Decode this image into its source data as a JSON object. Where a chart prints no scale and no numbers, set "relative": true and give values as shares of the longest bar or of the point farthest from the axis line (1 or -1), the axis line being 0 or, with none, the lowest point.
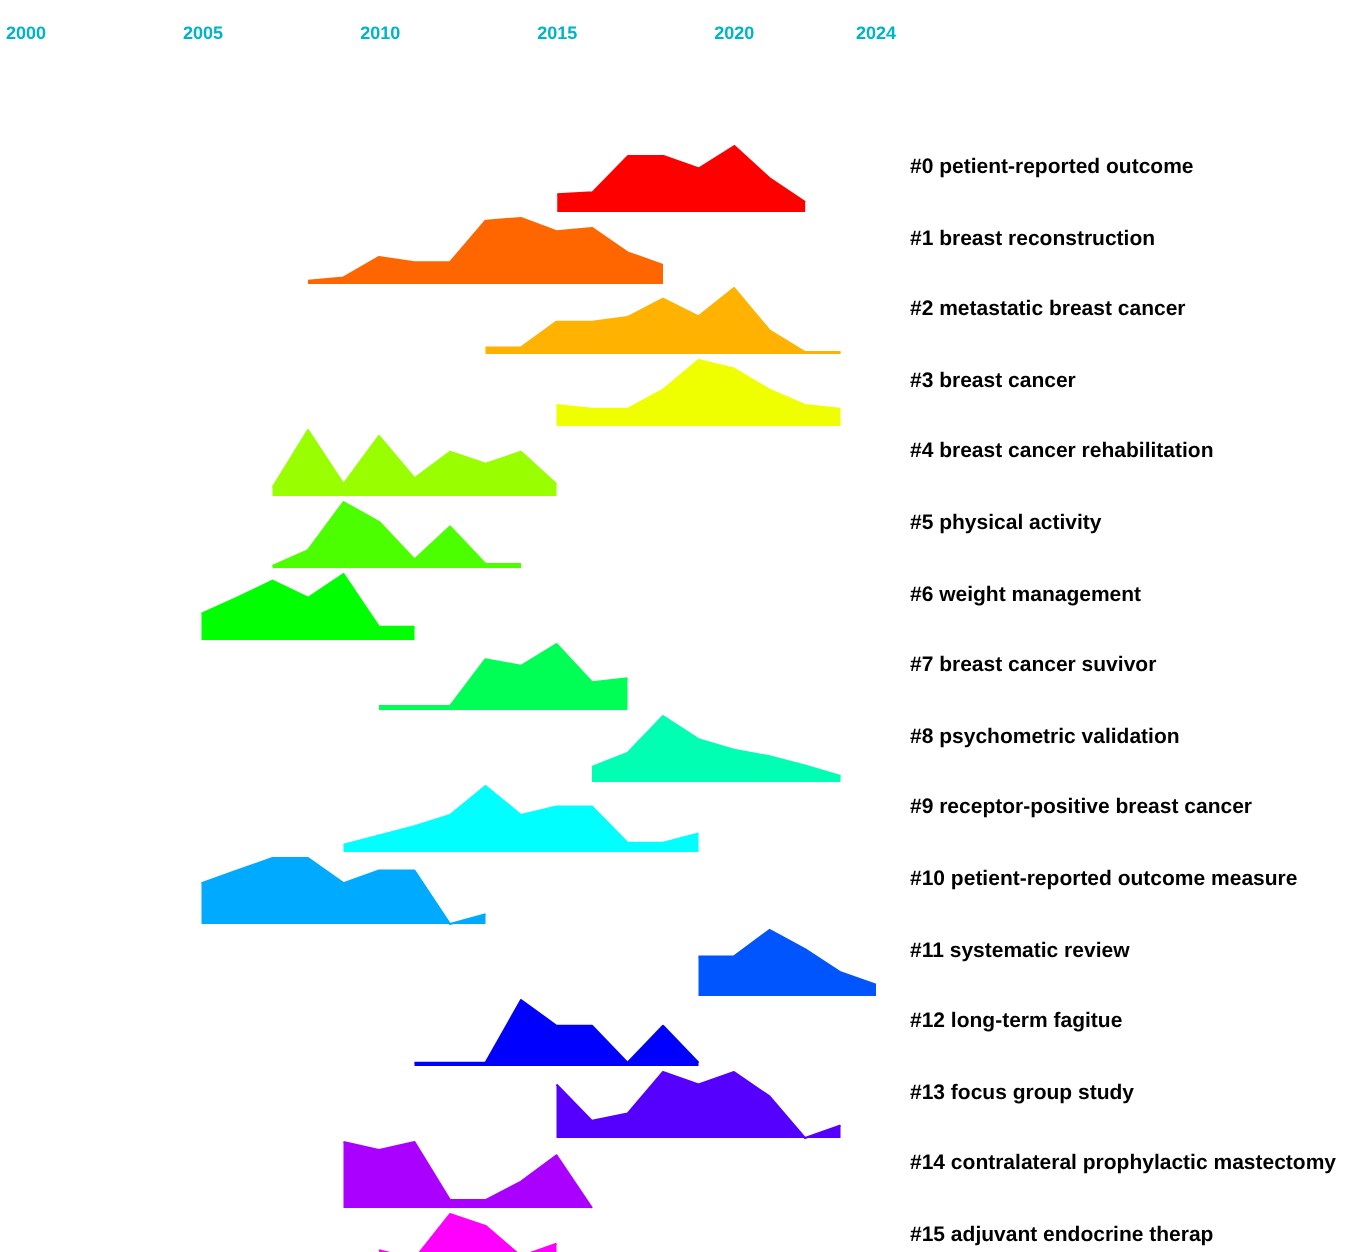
{
  "chart_data": [
    {
      "type": "area",
      "relative": true,
      "xlim": [
        2000,
        2024
      ],
      "xticks": [
        2000,
        2005,
        2010,
        2015,
        2020,
        2024
      ],
      "tick_labels": "x",
      "marker": "none",
      "legend": false,
      "x": [
        2015,
        2016,
        2017,
        2018,
        2019,
        2020,
        2021,
        2022
      ],
      "series": [
        {
          "name": "#0 petient-reported outcome",
          "color": "#ff0000",
          "values": [
            0.27,
            0.3,
            0.85,
            0.85,
            0.66,
            1,
            0.51,
            0.15
          ]
        }
      ]
    },
    {
      "type": "area",
      "relative": true,
      "xlim": [
        2000,
        2024
      ],
      "tick_labels": false,
      "marker": "none",
      "legend": false,
      "x": [
        2008,
        2009,
        2010,
        2011,
        2012,
        2013,
        2014,
        2015,
        2016,
        2017,
        2018
      ],
      "series": [
        {
          "name": "#1 breast reconstruction",
          "color": "#ff6600",
          "values": [
            0.05,
            0.1,
            0.41,
            0.33,
            0.33,
            0.96,
            1,
            0.8,
            0.85,
            0.48,
            0.29
          ]
        }
      ]
    },
    {
      "type": "area",
      "relative": true,
      "xlim": [
        2000,
        2024
      ],
      "tick_labels": false,
      "marker": "none",
      "legend": false,
      "x": [
        2013,
        2014,
        2015,
        2016,
        2017,
        2018,
        2019,
        2020,
        2021,
        2022,
        2023
      ],
      "series": [
        {
          "name": "#2 metastatic breast cancer",
          "color": "#ffb300",
          "values": [
            0.1,
            0.1,
            0.49,
            0.49,
            0.56,
            0.84,
            0.57,
            1,
            0.36,
            0.03,
            0.03
          ]
        }
      ]
    },
    {
      "type": "area",
      "relative": true,
      "xlim": [
        2000,
        2024
      ],
      "tick_labels": false,
      "marker": "none",
      "legend": false,
      "x": [
        2015,
        2016,
        2017,
        2018,
        2019,
        2020,
        2021,
        2022,
        2023
      ],
      "series": [
        {
          "name": "#3 breast cancer",
          "color": "#f0ff00",
          "values": [
            0.32,
            0.26,
            0.26,
            0.55,
            1,
            0.87,
            0.55,
            0.32,
            0.26
          ]
        }
      ]
    },
    {
      "type": "area",
      "relative": true,
      "xlim": [
        2000,
        2024
      ],
      "tick_labels": false,
      "marker": "none",
      "legend": false,
      "x": [
        2007,
        2008,
        2009,
        2010,
        2011,
        2012,
        2013,
        2014,
        2015
      ],
      "series": [
        {
          "name": "#4 breast cancer rehabilitation",
          "color": "#99ff00",
          "values": [
            0.13,
            1,
            0.18,
            0.91,
            0.27,
            0.67,
            0.49,
            0.67,
            0.18
          ]
        }
      ]
    },
    {
      "type": "area",
      "relative": true,
      "xlim": [
        2000,
        2024
      ],
      "tick_labels": false,
      "marker": "none",
      "legend": false,
      "x": [
        2007,
        2008,
        2009,
        2010,
        2011,
        2012,
        2013,
        2014
      ],
      "series": [
        {
          "name": "#5 physical activity",
          "color": "#4cff00",
          "values": [
            0.03,
            0.27,
            1,
            0.7,
            0.13,
            0.63,
            0.06,
            0.06
          ]
        }
      ]
    },
    {
      "type": "area",
      "relative": true,
      "xlim": [
        2000,
        2024
      ],
      "tick_labels": false,
      "marker": "none",
      "legend": false,
      "x": [
        2005,
        2006,
        2007,
        2008,
        2009,
        2010,
        2011
      ],
      "series": [
        {
          "name": "#6 weight management",
          "color": "#00ff00",
          "values": [
            0.4,
            0.64,
            0.9,
            0.64,
            1,
            0.2,
            0.2
          ]
        }
      ]
    },
    {
      "type": "area",
      "relative": true,
      "xlim": [
        2000,
        2024
      ],
      "tick_labels": false,
      "marker": "none",
      "legend": false,
      "x": [
        2010,
        2011,
        2012,
        2013,
        2014,
        2015,
        2016,
        2017
      ],
      "series": [
        {
          "name": "#7 breast cancer suvivor",
          "color": "#00ff55",
          "values": [
            0.06,
            0.06,
            0.06,
            0.77,
            0.67,
            1,
            0.42,
            0.48
          ]
        }
      ]
    },
    {
      "type": "area",
      "relative": true,
      "xlim": [
        2000,
        2024
      ],
      "tick_labels": false,
      "marker": "none",
      "legend": false,
      "x": [
        2016,
        2017,
        2018,
        2019,
        2020,
        2021,
        2022,
        2023
      ],
      "series": [
        {
          "name": "#8 psychometric validation",
          "color": "#00ffb3",
          "values": [
            0.23,
            0.44,
            1,
            0.65,
            0.49,
            0.39,
            0.25,
            0.09
          ]
        }
      ]
    },
    {
      "type": "area",
      "relative": true,
      "xlim": [
        2000,
        2024
      ],
      "tick_labels": false,
      "marker": "none",
      "legend": false,
      "x": [
        2009,
        2010,
        2011,
        2012,
        2013,
        2014,
        2015,
        2016,
        2017,
        2018,
        2019
      ],
      "series": [
        {
          "name": "#9 receptor-positive breast cancer",
          "color": "#00ffff",
          "values": [
            0.11,
            0.25,
            0.39,
            0.56,
            1,
            0.56,
            0.69,
            0.69,
            0.14,
            0.14,
            0.28
          ]
        }
      ]
    },
    {
      "type": "area",
      "relative": true,
      "xlim": [
        2000,
        2024
      ],
      "tick_labels": false,
      "marker": "none",
      "legend": false,
      "x": [
        2005,
        2006,
        2007,
        2008,
        2009,
        2010,
        2011,
        2012,
        2013
      ],
      "series": [
        {
          "name": "#10 petient-reported outcome measure",
          "color": "#00aaff",
          "values": [
            0.62,
            0.81,
            1,
            1,
            0.62,
            0.81,
            0.81,
            0,
            0.15
          ]
        }
      ]
    },
    {
      "type": "area",
      "relative": true,
      "xlim": [
        2000,
        2024
      ],
      "tick_labels": false,
      "marker": "none",
      "legend": false,
      "x": [
        2019,
        2020,
        2021,
        2022,
        2023,
        2024
      ],
      "series": [
        {
          "name": "#11 systematic review",
          "color": "#0055ff",
          "values": [
            0.6,
            0.6,
            1,
            0.71,
            0.36,
            0.17
          ]
        }
      ]
    },
    {
      "type": "area",
      "relative": true,
      "xlim": [
        2000,
        2024
      ],
      "tick_labels": false,
      "marker": "none",
      "legend": false,
      "x": [
        2011,
        2012,
        2013,
        2014,
        2015,
        2016,
        2017,
        2018,
        2019
      ],
      "series": [
        {
          "name": "#12 long-term fagitue",
          "color": "#0000ff",
          "values": [
            0.05,
            0.05,
            0.05,
            1,
            0.61,
            0.61,
            0.05,
            0.61,
            0.05
          ]
        }
      ]
    },
    {
      "type": "area",
      "relative": true,
      "xlim": [
        2000,
        2024
      ],
      "tick_labels": false,
      "marker": "none",
      "legend": false,
      "x": [
        2015,
        2016,
        2017,
        2018,
        2019,
        2020,
        2021,
        2022,
        2023
      ],
      "series": [
        {
          "name": "#13 focus group study",
          "color": "#5500ff",
          "values": [
            0.81,
            0.26,
            0.37,
            1,
            0.81,
            1,
            0.63,
            0,
            0.19
          ]
        }
      ]
    },
    {
      "type": "area",
      "relative": true,
      "xlim": [
        2000,
        2024
      ],
      "tick_labels": false,
      "marker": "none",
      "legend": false,
      "x": [
        2009,
        2010,
        2011,
        2012,
        2013,
        2014,
        2015,
        2016
      ],
      "series": [
        {
          "name": "#14 contralateral prophylactic mastectomy",
          "color": "#aa00ff",
          "values": [
            1,
            0.88,
            1,
            0.12,
            0.12,
            0.4,
            0.8,
            0
          ]
        }
      ]
    },
    {
      "type": "area",
      "relative": true,
      "xlim": [
        2000,
        2024
      ],
      "tick_labels": false,
      "marker": "none",
      "legend": false,
      "x": [
        2010,
        2011,
        2012,
        2013,
        2014,
        2015
      ],
      "series": [
        {
          "name": "#15 adjuvant endocrine therap",
          "color": "#ff00ff",
          "values": [
            0.45,
            0.32,
            1,
            0.82,
            0.36,
            0.55
          ]
        }
      ]
    }
  ]
}
